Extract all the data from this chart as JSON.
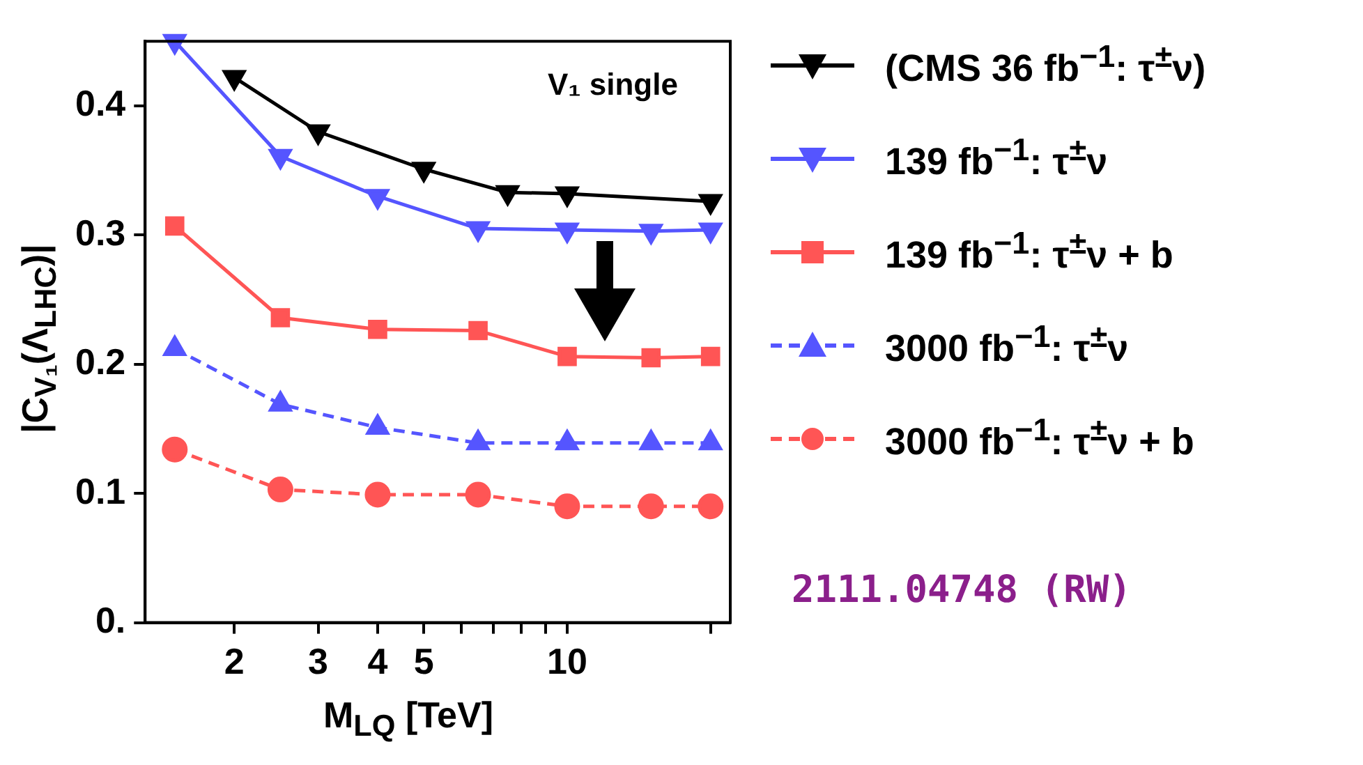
{
  "chart_data": {
    "type": "line",
    "xlabel": "M$_{LQ}$ [TeV]",
    "ylabel": "|C$_{V₁}$(Λ$_{LHC}$)|",
    "log": "x",
    "xlim": [
      1.3,
      22
    ],
    "xticks": [
      2,
      3,
      4,
      5,
      {
        "value": 6,
        "label": null
      },
      {
        "value": 7,
        "label": null
      },
      {
        "value": 8,
        "label": null
      },
      {
        "value": 9,
        "label": null
      },
      10,
      {
        "value": 20,
        "label": null
      }
    ],
    "ylim": [
      0,
      0.45
    ],
    "yticks": [
      {
        "value": 0,
        "label": "0."
      },
      0.1,
      0.2,
      0.3,
      0.4
    ],
    "grid": false,
    "legend": "right",
    "series": [
      {
        "name": "(CMS 36 fb$^{−1}$: τ$^{±}$ν)",
        "color": "#000000",
        "marker": "triangle-down",
        "line_style": "solid",
        "x": [
          2,
          3,
          5,
          7.5,
          10,
          20
        ],
        "values": [
          0.422,
          0.38,
          0.351,
          0.333,
          0.332,
          0.326
        ]
      },
      {
        "name": "139 fb$^{−1}$: τ$^{±}$ν",
        "color": "#5555ff",
        "marker": "triangle-down",
        "line_style": "solid",
        "x": [
          1.5,
          2.5,
          4,
          6.5,
          10,
          15,
          20
        ],
        "values": [
          0.45,
          0.361,
          0.33,
          0.305,
          0.304,
          0.303,
          0.304
        ]
      },
      {
        "name": "139 fb$^{−1}$: τ$^{±}$ν + b",
        "color": "#ff5555",
        "marker": "square",
        "line_style": "solid",
        "x": [
          1.5,
          2.5,
          4,
          6.5,
          10,
          15,
          20
        ],
        "values": [
          0.307,
          0.236,
          0.227,
          0.226,
          0.206,
          0.205,
          0.206
        ]
      },
      {
        "name": "3000 fb$^{−1}$: τ$^{±}$ν",
        "color": "#5555ff",
        "marker": "triangle",
        "line_style": "dashed",
        "x": [
          1.5,
          2.5,
          4,
          6.5,
          10,
          15,
          20
        ],
        "values": [
          0.212,
          0.169,
          0.151,
          0.139,
          0.139,
          0.139,
          0.139
        ]
      },
      {
        "name": "3000 fb$^{−1}$: τ$^{±}$ν + b",
        "color": "#ff5555",
        "marker": "circle",
        "line_style": "dashed",
        "x": [
          1.5,
          2.5,
          4,
          6.5,
          10,
          15,
          20
        ],
        "values": [
          0.134,
          0.103,
          0.099,
          0.099,
          0.09,
          0.09,
          0.09
        ]
      }
    ],
    "annotations": [
      "V₁ single",
      "2111.04748 (RW)"
    ]
  }
}
